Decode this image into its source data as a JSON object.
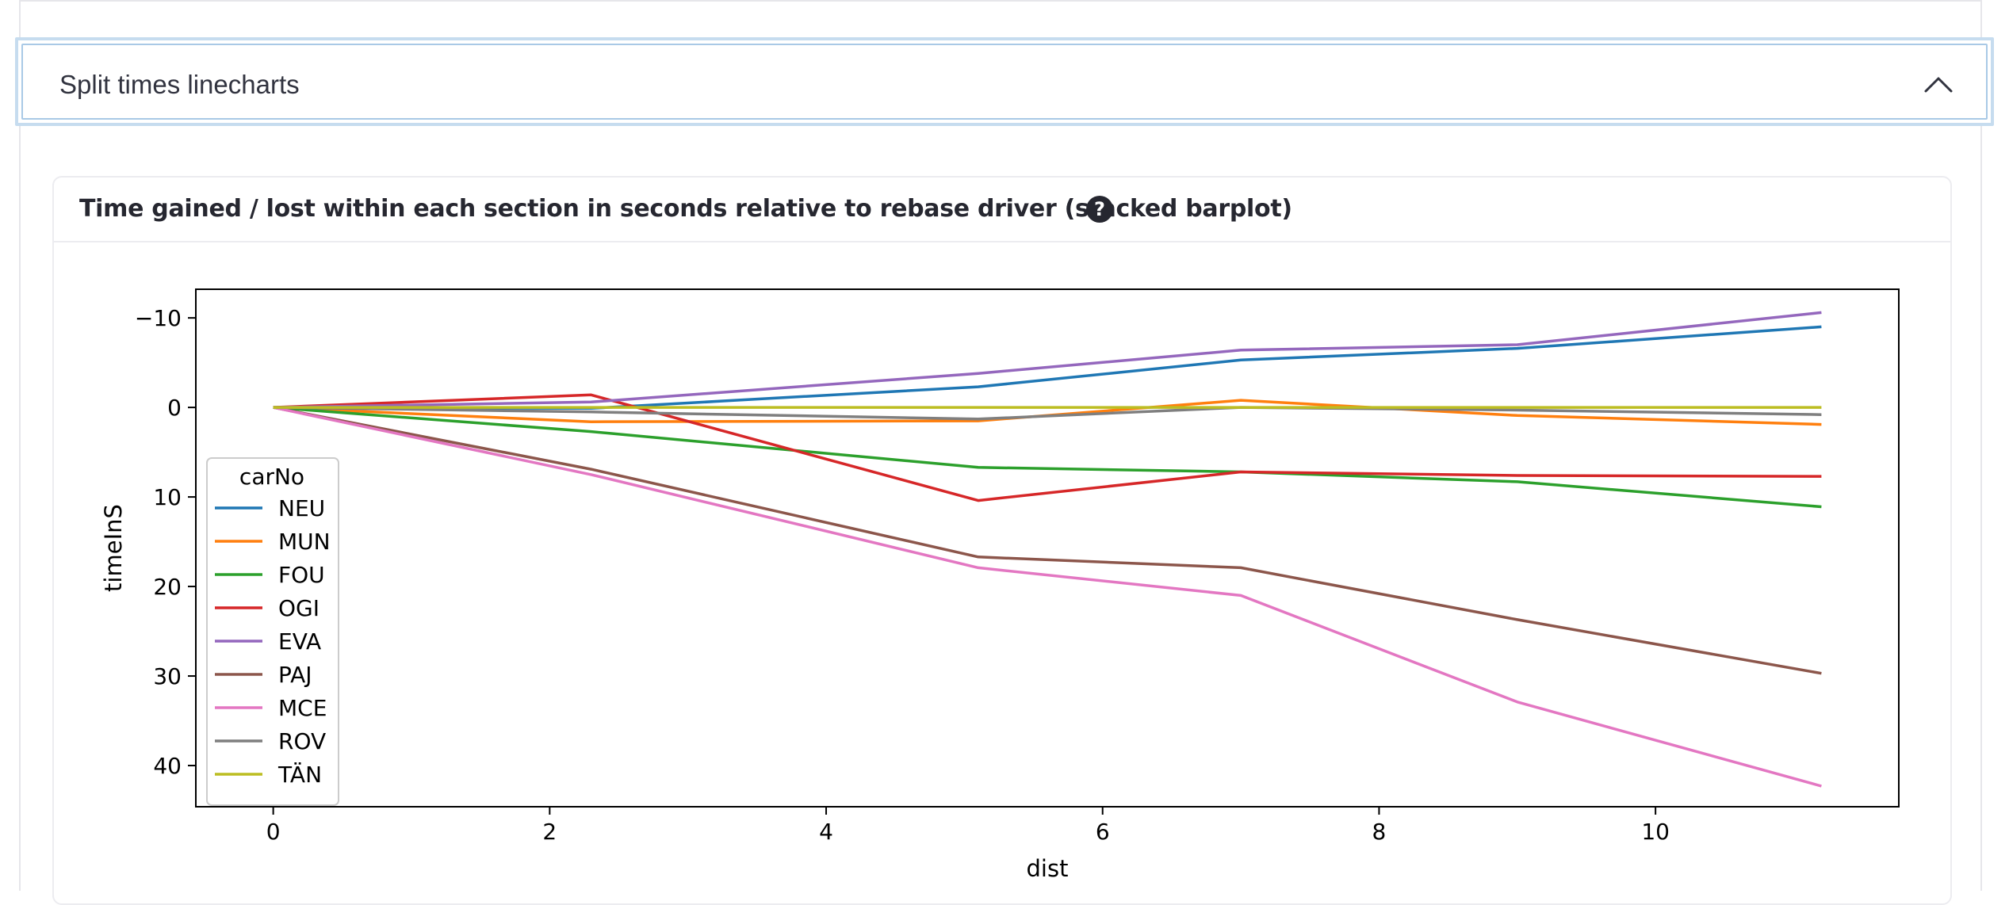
{
  "expander": {
    "title": "Split times linecharts",
    "toggle_icon": "chevron-up-icon"
  },
  "card": {
    "title": "Time gained / lost within each section in seconds relative to rebase driver (stacked barplot)",
    "help_icon": "question-circle-icon"
  },
  "chart_data": {
    "type": "line",
    "xlabel": "dist",
    "ylabel": "timeInS",
    "xlim": [
      -0.56,
      11.76
    ],
    "ylim": [
      -13.2,
      44.6
    ],
    "y_inverted": true,
    "x_ticks": [
      0,
      2,
      4,
      6,
      8,
      10
    ],
    "y_ticks": [
      -10,
      0,
      10,
      20,
      30,
      40
    ],
    "y_tick_labels": [
      "−10",
      "0",
      "10",
      "20",
      "30",
      "40"
    ],
    "grid": false,
    "legend_title": "carNo",
    "legend_position": "lower-left",
    "series": [
      {
        "name": "NEU",
        "color": "#1f77b4",
        "x": [
          0,
          2.3,
          5.1,
          7,
          9,
          11.2
        ],
        "y": [
          0,
          0.1,
          -2.3,
          -5.3,
          -6.6,
          -9
        ]
      },
      {
        "name": "MUN",
        "color": "#ff7f0e",
        "x": [
          0,
          2.3,
          5.1,
          7,
          9,
          11.2
        ],
        "y": [
          0,
          1.6,
          1.5,
          -0.8,
          0.9,
          1.9
        ]
      },
      {
        "name": "FOU",
        "color": "#2ca02c",
        "x": [
          0,
          2.3,
          5.1,
          7,
          9,
          11.2
        ],
        "y": [
          0,
          2.7,
          6.7,
          7.2,
          8.3,
          11.1
        ]
      },
      {
        "name": "OGI",
        "color": "#d62728",
        "x": [
          0,
          2.3,
          5.1,
          7,
          9,
          11.2
        ],
        "y": [
          0,
          -1.4,
          10.4,
          7.2,
          7.6,
          7.7
        ]
      },
      {
        "name": "EVA",
        "color": "#9467bd",
        "x": [
          0,
          2.3,
          5.1,
          7,
          9,
          11.2
        ],
        "y": [
          0,
          -0.6,
          -3.8,
          -6.4,
          -7,
          -10.6
        ]
      },
      {
        "name": "PAJ",
        "color": "#8c564b",
        "x": [
          0,
          2.3,
          5.1,
          7,
          9,
          11.2
        ],
        "y": [
          0,
          6.9,
          16.7,
          17.9,
          23.7,
          29.7
        ]
      },
      {
        "name": "MCE",
        "color": "#e377c2",
        "x": [
          0,
          2.3,
          5.1,
          7,
          9,
          11.2
        ],
        "y": [
          0,
          7.5,
          17.9,
          21,
          32.9,
          42.3
        ]
      },
      {
        "name": "ROV",
        "color": "#7f7f7f",
        "x": [
          0,
          2.3,
          5.1,
          7,
          9,
          11.2
        ],
        "y": [
          0,
          0.5,
          1.3,
          0,
          0.3,
          0.8
        ]
      },
      {
        "name": "TÄN",
        "color": "#bcbd22",
        "x": [
          0,
          2.3,
          5.1,
          7,
          9,
          11.2
        ],
        "y": [
          0,
          0,
          0,
          0,
          0,
          0
        ]
      }
    ]
  }
}
